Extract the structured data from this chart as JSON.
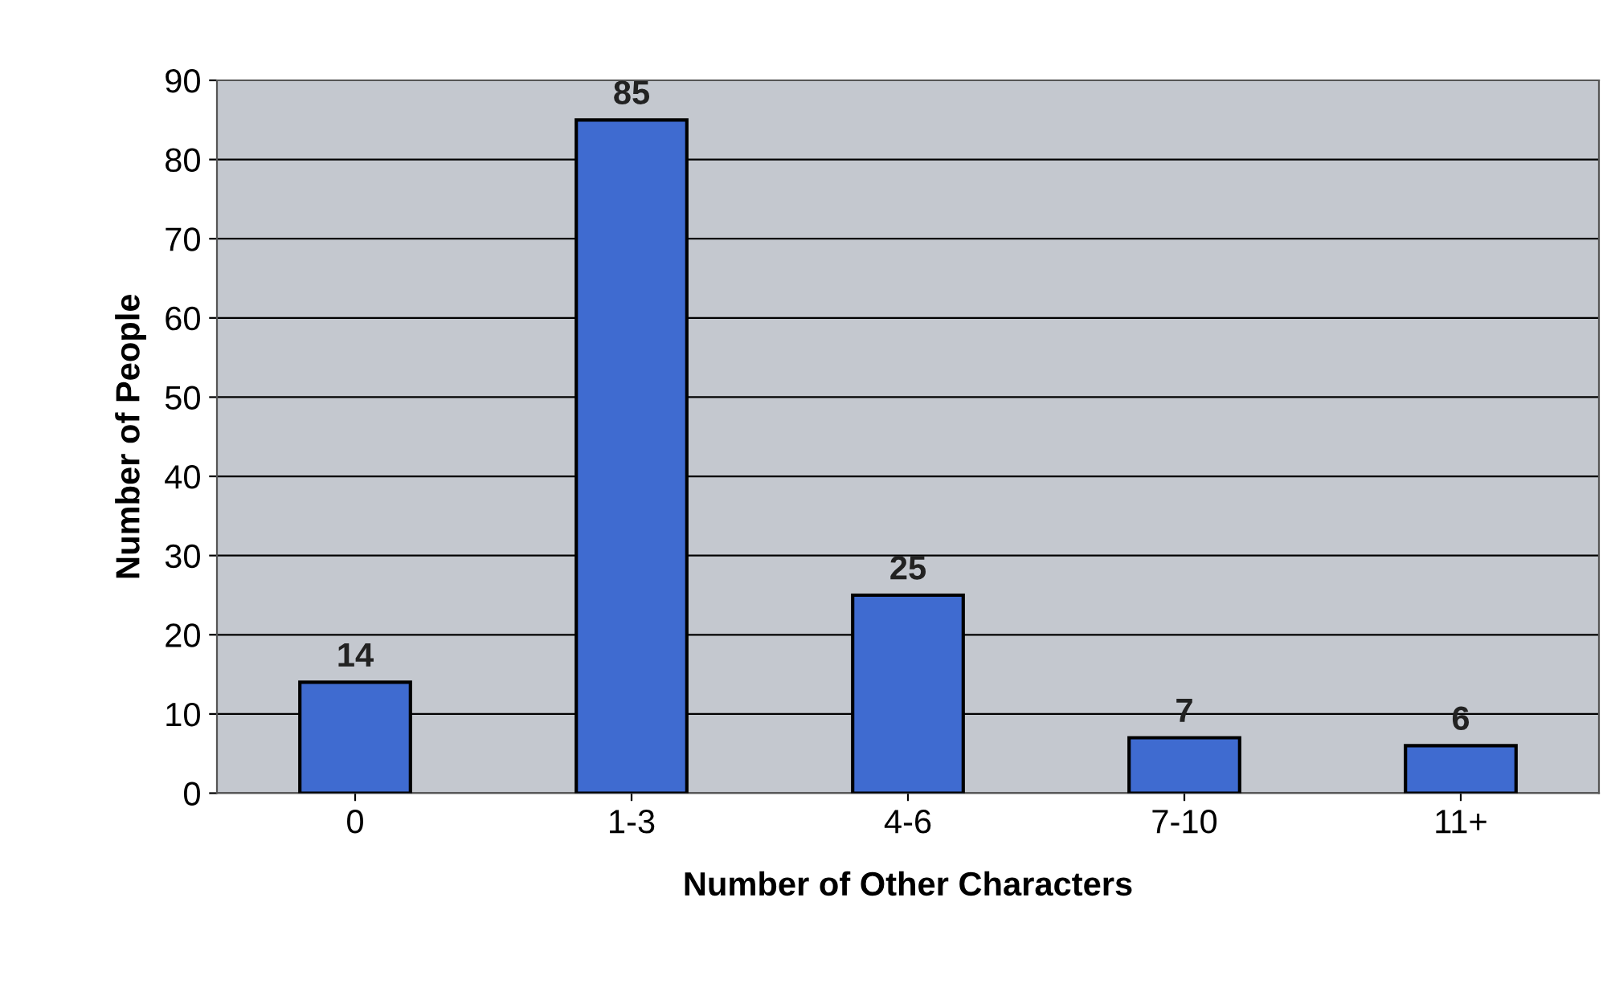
{
  "chart_data": {
    "type": "bar",
    "xlabel": "Number of Other Characters",
    "ylabel": "Number of People",
    "categories": [
      "0",
      "1-3",
      "4-6",
      "7-10",
      "11+"
    ],
    "values": [
      14,
      85,
      25,
      7,
      6
    ],
    "color": "#3f6bd0",
    "ylim": [
      0,
      90
    ],
    "yticks": [
      0,
      10,
      20,
      30,
      40,
      50,
      60,
      70,
      80,
      90
    ],
    "grid": "y",
    "data_labels": true,
    "legend": false
  }
}
